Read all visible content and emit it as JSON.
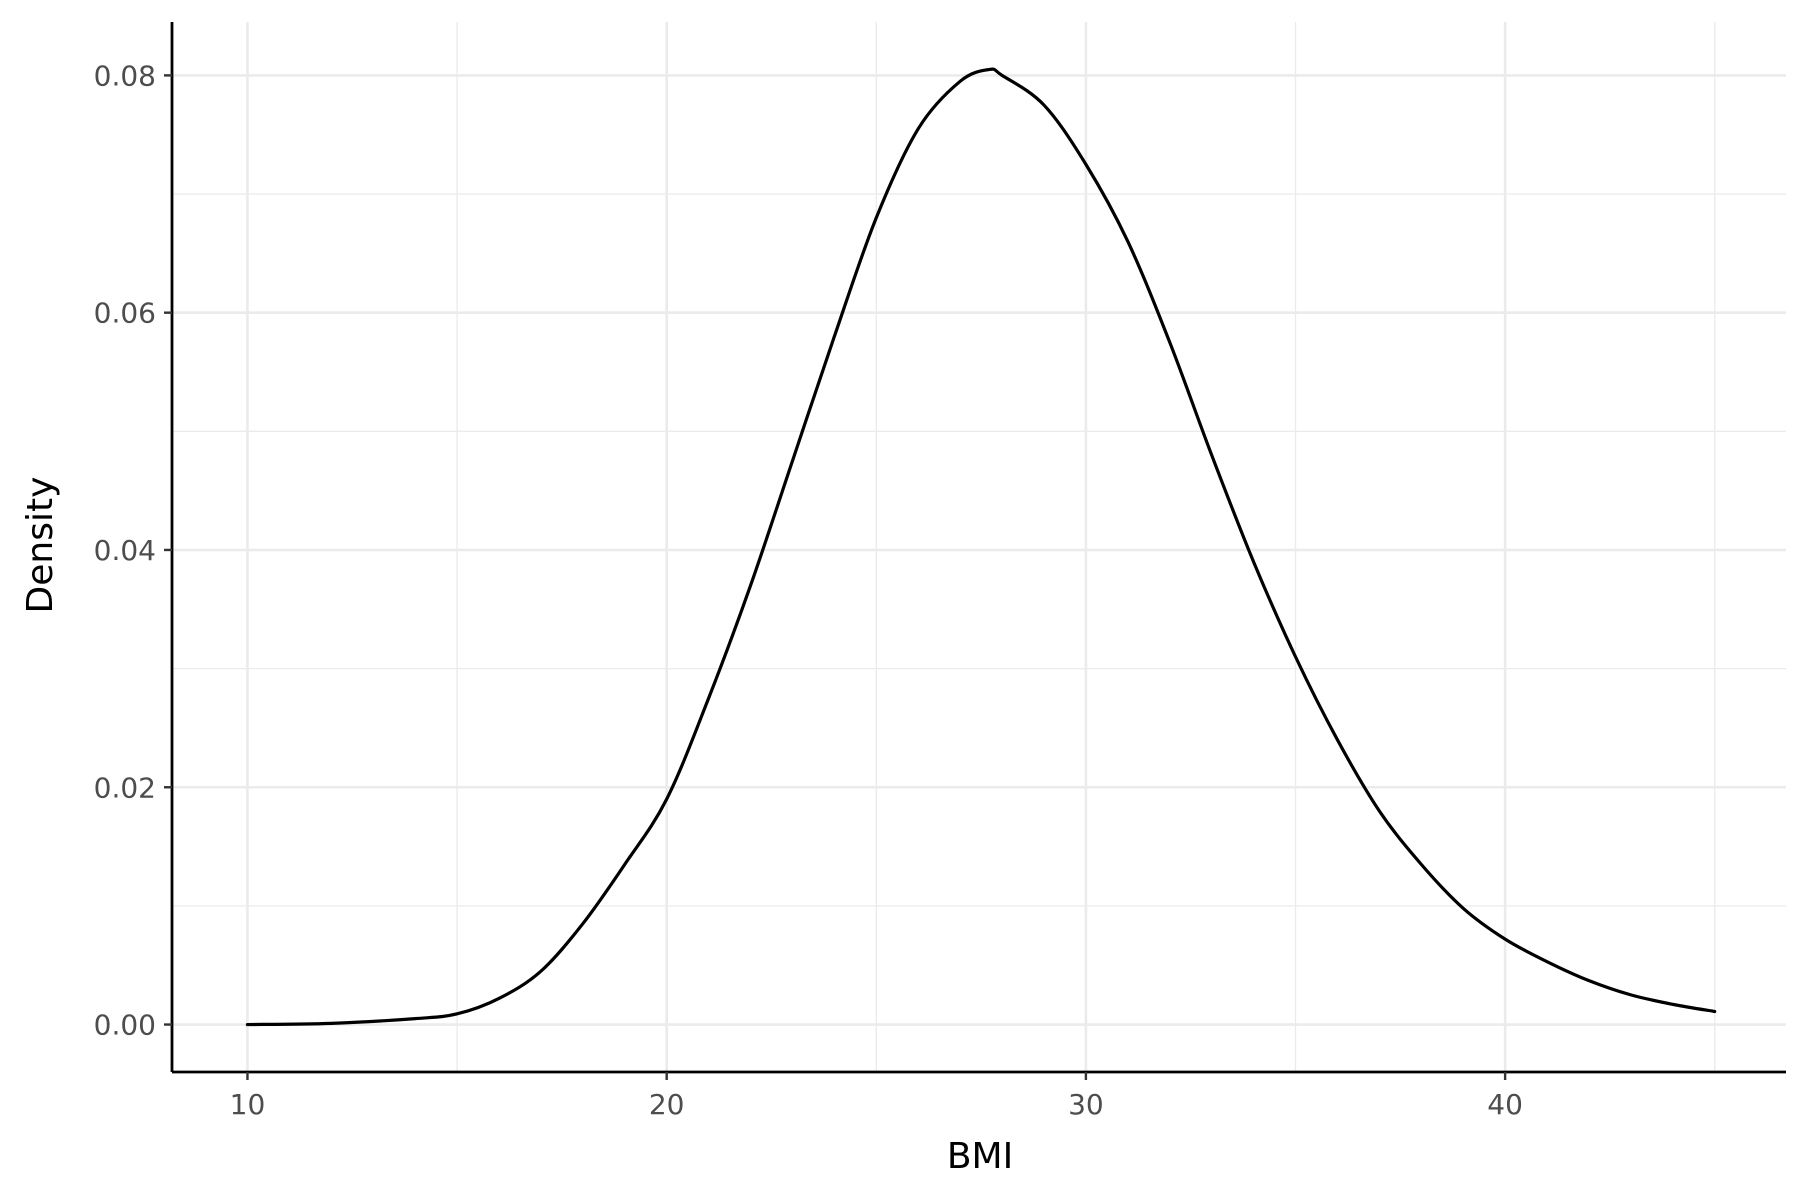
{
  "chart_data": {
    "type": "line",
    "title": "",
    "xlabel": "BMI",
    "ylabel": "Density",
    "xlim": [
      8.2,
      46.7
    ],
    "ylim": [
      -0.004,
      0.0845
    ],
    "x_ticks": [
      10,
      20,
      30,
      40
    ],
    "x_tick_labels": [
      "10",
      "20",
      "30",
      "40"
    ],
    "x_minor_ticks": [
      15,
      25,
      35,
      45
    ],
    "y_ticks": [
      0.0,
      0.02,
      0.04,
      0.06,
      0.08
    ],
    "y_tick_labels": [
      "0.00",
      "0.02",
      "0.04",
      "0.06",
      "0.08"
    ],
    "y_minor_ticks": [
      0.01,
      0.03,
      0.05,
      0.07
    ],
    "grid": true,
    "legend": "none",
    "line_color": "#000000",
    "series": [
      {
        "x": [
          10,
          12,
          14,
          15,
          16,
          17,
          18,
          19,
          20,
          21,
          22,
          23,
          24,
          25,
          26,
          27,
          27.7,
          28,
          29,
          30,
          31,
          32,
          33,
          34,
          35,
          36,
          37,
          38,
          39,
          40,
          41,
          42,
          43,
          44,
          45
        ],
        "y": [
          0.0,
          0.0001,
          0.0005,
          0.0009,
          0.0022,
          0.0045,
          0.0085,
          0.0135,
          0.019,
          0.0275,
          0.037,
          0.0475,
          0.058,
          0.068,
          0.0755,
          0.0795,
          0.0805,
          0.08,
          0.0775,
          0.0725,
          0.066,
          0.0575,
          0.048,
          0.039,
          0.031,
          0.024,
          0.018,
          0.0135,
          0.0098,
          0.0072,
          0.0053,
          0.0037,
          0.0025,
          0.0017,
          0.0011
        ]
      }
    ]
  }
}
